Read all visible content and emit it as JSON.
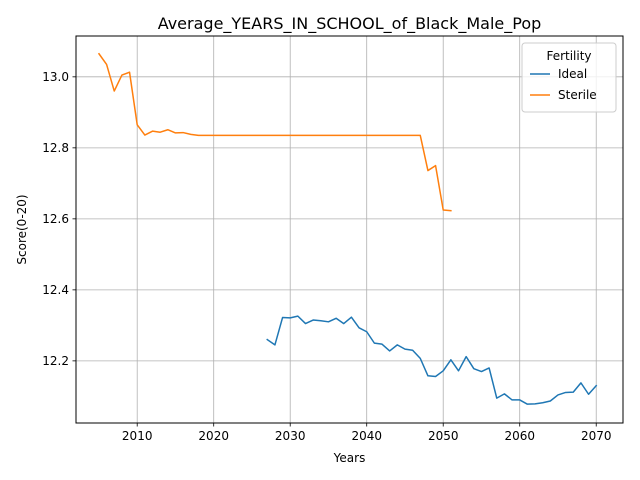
{
  "chart_data": {
    "type": "line",
    "title": "Average_YEARS_IN_SCHOOL_of_Black_Male_Pop",
    "xlabel": "Years",
    "ylabel": "Score(0-20)",
    "xlim": [
      2002,
      2073.5
    ],
    "ylim": [
      12.025,
      13.115
    ],
    "xticks": [
      2010,
      2020,
      2030,
      2040,
      2050,
      2060,
      2070
    ],
    "yticks": [
      12.2,
      12.4,
      12.6,
      12.8,
      13.0
    ],
    "xtick_labels": [
      "2010",
      "2020",
      "2030",
      "2040",
      "2050",
      "2060",
      "2070"
    ],
    "ytick_labels": [
      "12.2",
      "12.4",
      "12.6",
      "12.8",
      "13.0"
    ],
    "grid": true,
    "legend": {
      "title": "Fertility",
      "placement": "top-right"
    },
    "series": [
      {
        "name": "Ideal",
        "color": "#1f77b4",
        "x": [
          2027,
          2028,
          2029,
          2030,
          2031,
          2032,
          2033,
          2034,
          2035,
          2036,
          2037,
          2038,
          2039,
          2040,
          2041,
          2042,
          2043,
          2044,
          2045,
          2046,
          2047,
          2048,
          2049,
          2050,
          2051,
          2052,
          2053,
          2054,
          2055,
          2056,
          2057,
          2058,
          2059,
          2060,
          2061,
          2062,
          2063,
          2064,
          2065,
          2066,
          2067,
          2068,
          2069,
          2070
        ],
        "values": [
          12.26,
          12.245,
          12.322,
          12.321,
          12.326,
          12.305,
          12.315,
          12.313,
          12.31,
          12.32,
          12.305,
          12.323,
          12.293,
          12.282,
          12.25,
          12.247,
          12.228,
          12.245,
          12.233,
          12.23,
          12.207,
          12.158,
          12.156,
          12.172,
          12.203,
          12.172,
          12.212,
          12.178,
          12.17,
          12.18,
          12.095,
          12.107,
          12.09,
          12.09,
          12.078,
          12.079,
          12.082,
          12.087,
          12.104,
          12.111,
          12.112,
          12.138,
          12.106,
          12.13
        ]
      },
      {
        "name": "Sterile",
        "color": "#ff7f0e",
        "x": [
          2005,
          2006,
          2007,
          2008,
          2009,
          2010,
          2011,
          2012,
          2013,
          2014,
          2015,
          2016,
          2017,
          2018,
          2019,
          2020,
          2021,
          2022,
          2023,
          2024,
          2025,
          2026,
          2027,
          2028,
          2029,
          2030,
          2031,
          2032,
          2033,
          2034,
          2035,
          2036,
          2037,
          2038,
          2039,
          2040,
          2041,
          2042,
          2043,
          2044,
          2045,
          2046,
          2047,
          2048,
          2049,
          2050,
          2051
        ],
        "values": [
          13.065,
          13.035,
          12.96,
          13.005,
          13.013,
          12.865,
          12.836,
          12.847,
          12.844,
          12.851,
          12.842,
          12.843,
          12.838,
          12.835,
          12.835,
          12.835,
          12.835,
          12.835,
          12.835,
          12.835,
          12.835,
          12.835,
          12.835,
          12.835,
          12.835,
          12.835,
          12.835,
          12.835,
          12.835,
          12.835,
          12.835,
          12.835,
          12.835,
          12.835,
          12.835,
          12.835,
          12.835,
          12.835,
          12.835,
          12.835,
          12.835,
          12.835,
          12.835,
          12.736,
          12.75,
          12.625,
          12.623
        ]
      }
    ]
  }
}
